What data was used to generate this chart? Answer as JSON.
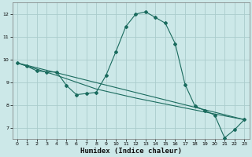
{
  "xlabel": "Humidex (Indice chaleur)",
  "bg_color": "#cce8e8",
  "grid_color": "#aacccc",
  "line_color": "#1a6b5e",
  "xlim": [
    -0.5,
    23.5
  ],
  "ylim": [
    6.5,
    12.5
  ],
  "xticks": [
    0,
    1,
    2,
    3,
    4,
    5,
    6,
    7,
    8,
    9,
    10,
    11,
    12,
    13,
    14,
    15,
    16,
    17,
    18,
    19,
    20,
    21,
    22,
    23
  ],
  "yticks": [
    7,
    8,
    9,
    10,
    11,
    12
  ],
  "curve1_x": [
    0,
    1,
    2,
    3,
    4,
    5,
    6,
    7,
    8,
    9,
    10,
    11,
    12,
    13,
    14,
    15,
    16,
    17,
    18,
    19,
    20,
    21,
    22,
    23
  ],
  "curve1_y": [
    9.85,
    9.7,
    9.5,
    9.45,
    9.45,
    8.85,
    8.45,
    8.5,
    8.55,
    9.3,
    10.35,
    11.45,
    12.0,
    12.1,
    11.85,
    11.6,
    10.7,
    8.9,
    7.95,
    7.75,
    7.55,
    6.55,
    6.9,
    7.35
  ],
  "curve2_x": [
    0,
    23
  ],
  "curve2_y": [
    9.85,
    7.35
  ],
  "curve3_x": [
    0,
    4,
    8,
    12,
    16,
    20,
    23
  ],
  "curve3_y": [
    9.85,
    9.3,
    8.7,
    8.3,
    7.95,
    7.6,
    7.35
  ]
}
